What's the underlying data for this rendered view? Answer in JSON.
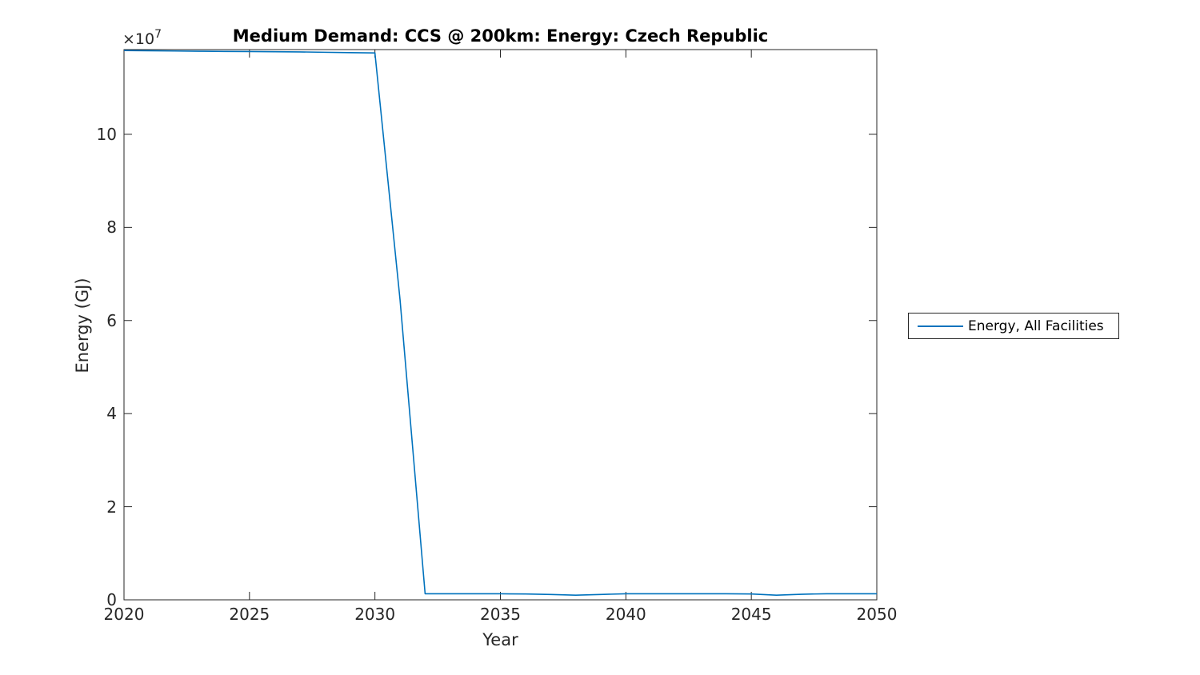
{
  "figure": {
    "background": "#ffffff"
  },
  "chart_data": {
    "type": "line",
    "title": "Medium Demand: CCS @ 200km: Energy: Czech Republic",
    "xlabel": "Year",
    "ylabel": "Energy (GJ)",
    "y_axis_multiplier_base": "×10",
    "y_axis_multiplier_exponent": "7",
    "xlim": [
      2020,
      2050
    ],
    "ylim": [
      0,
      118200000
    ],
    "xticks": [
      2020,
      2025,
      2030,
      2035,
      2040,
      2045,
      2050
    ],
    "yticks": [
      0,
      2,
      4,
      6,
      8,
      10
    ],
    "ytick_scale": 10000000,
    "grid": false,
    "box": true,
    "tick_direction": "in",
    "frame_color": "#262626",
    "legend_position": "right-outside",
    "x": [
      2020,
      2021,
      2022,
      2023,
      2024,
      2025,
      2026,
      2027,
      2028,
      2029,
      2030,
      2031,
      2032,
      2033,
      2034,
      2035,
      2036,
      2037,
      2038,
      2039,
      2040,
      2041,
      2042,
      2043,
      2044,
      2045,
      2046,
      2047,
      2048,
      2049,
      2050
    ],
    "series": [
      {
        "name": "Energy, All Facilities",
        "color": "#0072BD",
        "values": [
          118000000,
          117950000,
          117900000,
          117850000,
          117800000,
          117780000,
          117740000,
          117700000,
          117620000,
          117550000,
          117480000,
          64500000,
          1300000,
          1300000,
          1300000,
          1300000,
          1250000,
          1150000,
          1000000,
          1150000,
          1300000,
          1300000,
          1300000,
          1300000,
          1300000,
          1250000,
          1000000,
          1200000,
          1300000,
          1300000,
          1300000
        ]
      }
    ]
  }
}
